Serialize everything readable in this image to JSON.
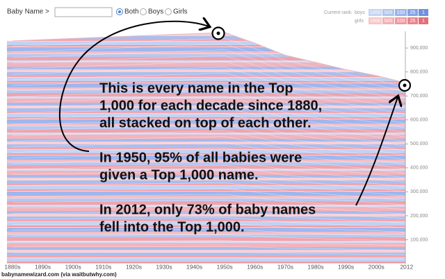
{
  "header": {
    "name_label": "Baby Name >",
    "options": [
      "Both",
      "Boys",
      "Girls"
    ]
  },
  "rank_legend": {
    "title": "Current rank:",
    "rows": [
      {
        "name": "boys",
        "ranks": [
          1000,
          500,
          100,
          25,
          1
        ],
        "colors": [
          "#c5d4f2",
          "#b1c5ee",
          "#9ab4e9",
          "#86a4e4",
          "#6f92de"
        ]
      },
      {
        "name": "girls",
        "ranks": [
          1000,
          500,
          100,
          25,
          1
        ],
        "colors": [
          "#f5c6ca",
          "#f1b1b7",
          "#ed9aa2",
          "#e8858e",
          "#e2707b"
        ]
      }
    ]
  },
  "chart_data": {
    "type": "area",
    "categories": [
      "1880s",
      "1890s",
      "1900s",
      "1910s",
      "1920s",
      "1930s",
      "1940s",
      "1950s",
      "1960s",
      "1970s",
      "1980s",
      "1990s",
      "2000s",
      "2012"
    ],
    "values": [
      930000,
      935000,
      940000,
      945000,
      950000,
      955000,
      960000,
      965000,
      920000,
      870000,
      840000,
      810000,
      785000,
      755000
    ],
    "ylim": [
      0,
      970000
    ],
    "yticks": [
      {
        "value": 100000,
        "label": "100,000"
      },
      {
        "value": 200000,
        "label": "200,000"
      },
      {
        "value": 300000,
        "label": "300,000"
      },
      {
        "value": 400000,
        "label": "400,000"
      },
      {
        "value": 500000,
        "label": "500,000"
      },
      {
        "value": 600000,
        "label": "600,000"
      },
      {
        "value": 700000,
        "label": "700,000"
      },
      {
        "value": 800000,
        "label": "800,000"
      },
      {
        "value": 900000,
        "label": "900,000"
      }
    ],
    "annotations": [
      {
        "lines": [
          "This is every name in the Top",
          "1,000 for each decade since 1880,",
          "all stacked on top of each other."
        ]
      },
      {
        "lines": [
          "In 1950, 95% of all babies were",
          "given a Top 1,000 name."
        ]
      },
      {
        "lines": [
          "In 2012, only 73% of baby names",
          "fell into the Top 1,000."
        ]
      }
    ]
  },
  "footer": "babynamewizard.com (via waitbutwhy.com)"
}
